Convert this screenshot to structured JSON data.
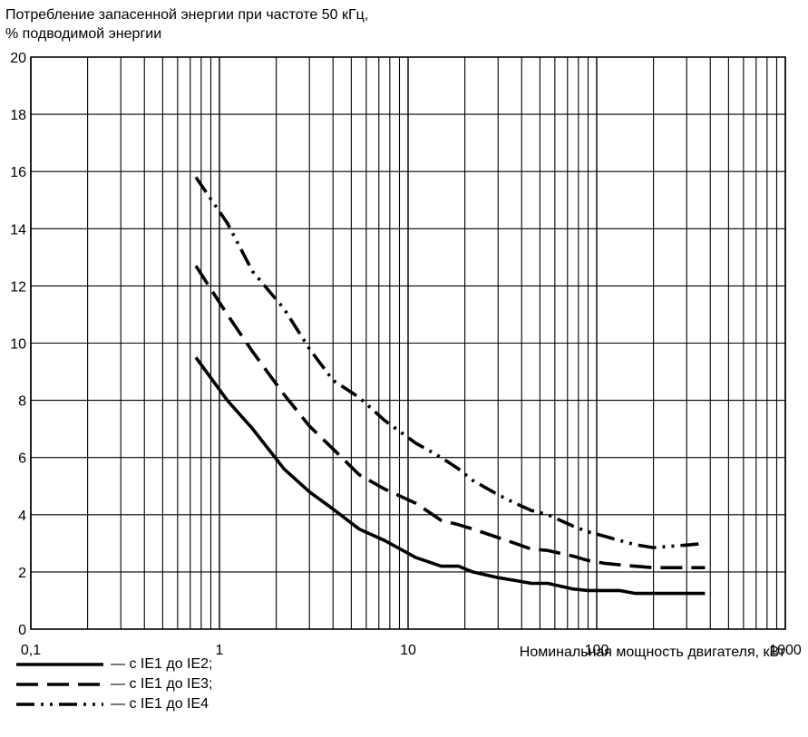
{
  "chart_data": {
    "type": "line",
    "title_lines": [
      "Потребление запасенной энергии при частоте 50 кГц,",
      "% подводимой энергии"
    ],
    "xlabel": "Номинальная мощность двигателя, кВт",
    "ylabel": "",
    "xscale": "log",
    "xlim": [
      0.1,
      1000
    ],
    "ylim": [
      0,
      20
    ],
    "grid": true,
    "legend_position": "bottom-left",
    "x_ticks": [
      0.1,
      1,
      10,
      100,
      1000
    ],
    "x_tick_labels": [
      "0,1",
      "1",
      "10",
      "100",
      "1000"
    ],
    "y_ticks": [
      0,
      2,
      4,
      6,
      8,
      10,
      12,
      14,
      16,
      18,
      20
    ],
    "y_tick_labels": [
      "0",
      "2",
      "4",
      "6",
      "8",
      "10",
      "12",
      "14",
      "16",
      "18",
      "20"
    ],
    "series": [
      {
        "name": "— с IE1 до IE2;",
        "dash": "solid",
        "color": "#000000",
        "points": [
          [
            0.75,
            9.5
          ],
          [
            1.1,
            8.0
          ],
          [
            1.5,
            7.0
          ],
          [
            2.2,
            5.6
          ],
          [
            3.0,
            4.8
          ],
          [
            4.0,
            4.2
          ],
          [
            5.5,
            3.5
          ],
          [
            7.5,
            3.1
          ],
          [
            11,
            2.5
          ],
          [
            15,
            2.2
          ],
          [
            18.5,
            2.2
          ],
          [
            22,
            2.0
          ],
          [
            30,
            1.8
          ],
          [
            37,
            1.7
          ],
          [
            45,
            1.6
          ],
          [
            55,
            1.6
          ],
          [
            75,
            1.4
          ],
          [
            90,
            1.35
          ],
          [
            110,
            1.35
          ],
          [
            132,
            1.35
          ],
          [
            160,
            1.25
          ],
          [
            200,
            1.25
          ],
          [
            250,
            1.25
          ],
          [
            315,
            1.25
          ],
          [
            375,
            1.25
          ]
        ]
      },
      {
        "name": "— с IE1 до IE3;",
        "dash": "dashed",
        "color": "#000000",
        "points": [
          [
            0.75,
            12.7
          ],
          [
            1.1,
            11.0
          ],
          [
            1.5,
            9.7
          ],
          [
            2.2,
            8.2
          ],
          [
            3.0,
            7.1
          ],
          [
            4.0,
            6.3
          ],
          [
            5.5,
            5.4
          ],
          [
            7.5,
            4.9
          ],
          [
            11,
            4.4
          ],
          [
            15,
            3.8
          ],
          [
            18.5,
            3.65
          ],
          [
            22,
            3.5
          ],
          [
            30,
            3.2
          ],
          [
            37,
            3.0
          ],
          [
            45,
            2.8
          ],
          [
            55,
            2.75
          ],
          [
            75,
            2.55
          ],
          [
            90,
            2.4
          ],
          [
            110,
            2.3
          ],
          [
            132,
            2.25
          ],
          [
            160,
            2.2
          ],
          [
            200,
            2.15
          ],
          [
            250,
            2.15
          ],
          [
            315,
            2.15
          ],
          [
            375,
            2.15
          ]
        ]
      },
      {
        "name": "— с IE1 до IE4",
        "dash": "dash-dot-dot",
        "color": "#000000",
        "points": [
          [
            0.75,
            15.8
          ],
          [
            1.1,
            14.2
          ],
          [
            1.5,
            12.5
          ],
          [
            2.2,
            11.2
          ],
          [
            3.0,
            9.8
          ],
          [
            4.0,
            8.7
          ],
          [
            5.5,
            8.1
          ],
          [
            7.5,
            7.3
          ],
          [
            11,
            6.5
          ],
          [
            15,
            6.0
          ],
          [
            18.5,
            5.6
          ],
          [
            22,
            5.2
          ],
          [
            30,
            4.7
          ],
          [
            37,
            4.4
          ],
          [
            45,
            4.15
          ],
          [
            55,
            4.0
          ],
          [
            75,
            3.6
          ],
          [
            90,
            3.4
          ],
          [
            110,
            3.25
          ],
          [
            132,
            3.1
          ],
          [
            160,
            2.95
          ],
          [
            200,
            2.85
          ],
          [
            250,
            2.9
          ],
          [
            315,
            2.95
          ],
          [
            375,
            3.0
          ]
        ]
      }
    ]
  }
}
